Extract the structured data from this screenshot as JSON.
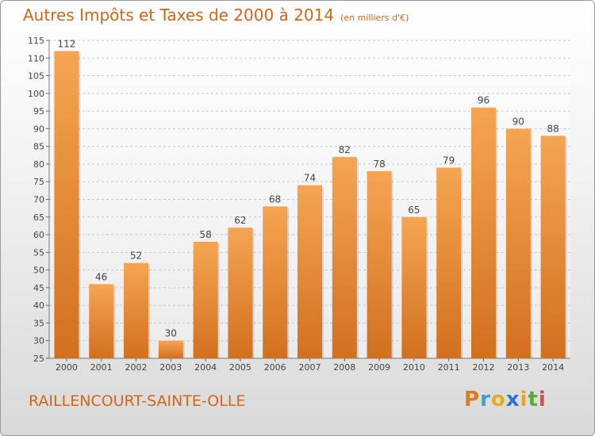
{
  "title": "Autres Impôts et Taxes de 2000 à 2014",
  "unit": "(en milliers d'€)",
  "city": "RAILLENCOURT-SAINTE-OLLE",
  "brand": {
    "letters": [
      "P",
      "r",
      "o",
      "x",
      "i",
      "t",
      "i"
    ]
  },
  "colors": {
    "bar_top": "#f5a552",
    "bar_bottom": "#d2701e",
    "title": "#d0661a",
    "grid": "#c8c8c8"
  },
  "chart_data": {
    "type": "bar",
    "categories": [
      "2000",
      "2001",
      "2002",
      "2003",
      "2004",
      "2005",
      "2006",
      "2007",
      "2008",
      "2009",
      "2010",
      "2011",
      "2012",
      "2013",
      "2014"
    ],
    "values": [
      112,
      46,
      52,
      30,
      58,
      62,
      68,
      74,
      82,
      78,
      65,
      79,
      96,
      90,
      88
    ],
    "ylim": [
      25,
      115
    ],
    "yticks": [
      25,
      30,
      35,
      40,
      45,
      50,
      55,
      60,
      65,
      70,
      75,
      80,
      85,
      90,
      95,
      100,
      105,
      110,
      115
    ],
    "grid": true
  }
}
